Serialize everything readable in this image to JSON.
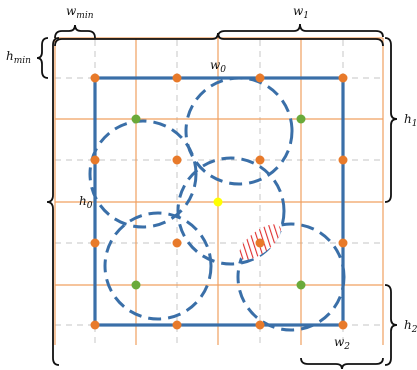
{
  "labels": {
    "w_min": "w",
    "w_min_sub": "min",
    "w1": "w",
    "w1_sub": "1",
    "w0": "w",
    "w0_sub": "0",
    "w2": "w",
    "w2_sub": "2",
    "h_min": "h",
    "h_min_sub": "min",
    "h1": "h",
    "h1_sub": "1",
    "h0": "h",
    "h0_sub": "0",
    "h2": "h",
    "h2_sub": "2"
  },
  "colors": {
    "orange_grid": "#f0a060",
    "dashed_grid": "#d0d0d0",
    "blue": "#3a6fa8",
    "dot_orange": "#e87a2a",
    "dot_green": "#6aaa3a",
    "dot_yellow": "#ffff00",
    "hatch_red": "#e03030",
    "bracket": "#111111"
  }
}
